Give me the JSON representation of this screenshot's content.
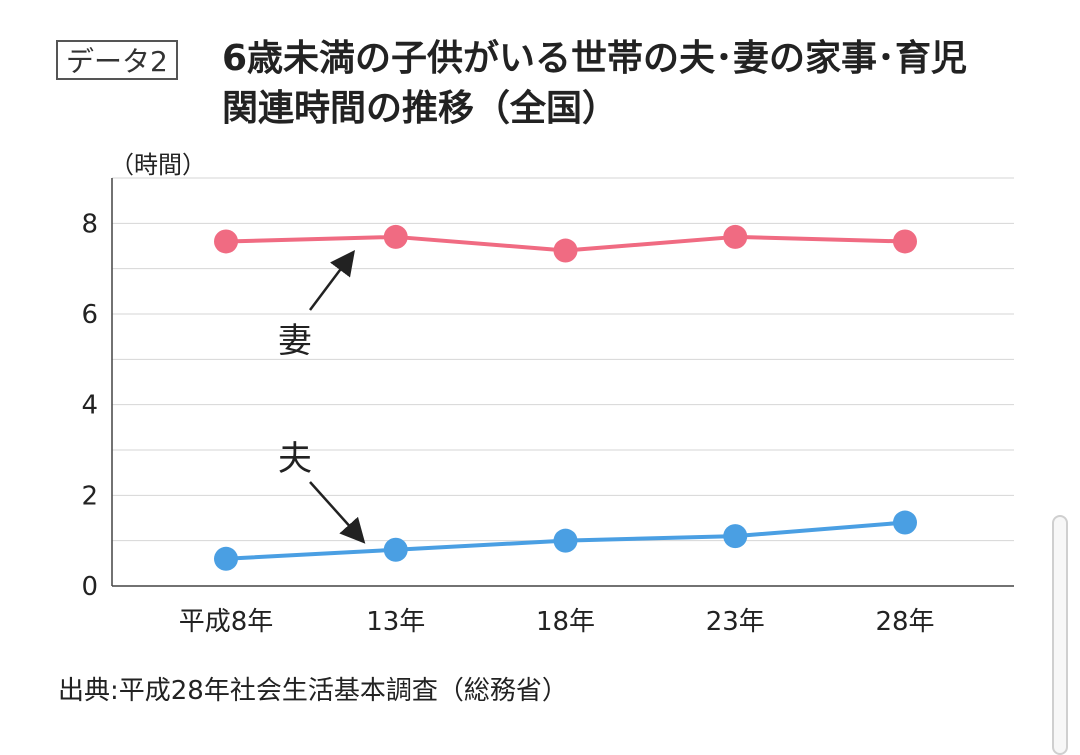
{
  "header": {
    "data_tag": "データ2",
    "title": "6歳未満の子供がいる世帯の夫･妻の家事･育児関連時間の推移（全国）"
  },
  "source": "出典:平成28年社会生活基本調査（総務省）",
  "chart_data": {
    "type": "line",
    "title": "6歳未満の子供がいる世帯の夫･妻の家事･育児関連時間の推移（全国）",
    "ylabel": "（時間）",
    "xlabel": "",
    "categories": [
      "平成8年",
      "13年",
      "18年",
      "23年",
      "28年"
    ],
    "ylim": [
      0,
      9
    ],
    "yticks": [
      0,
      2,
      4,
      6,
      8
    ],
    "grid": true,
    "series": [
      {
        "name": "妻",
        "color": "#f06b82",
        "values": [
          7.6,
          7.7,
          7.4,
          7.7,
          7.6
        ]
      },
      {
        "name": "夫",
        "color": "#4a9fe3",
        "values": [
          0.6,
          0.8,
          1.0,
          1.1,
          1.4
        ]
      }
    ]
  }
}
